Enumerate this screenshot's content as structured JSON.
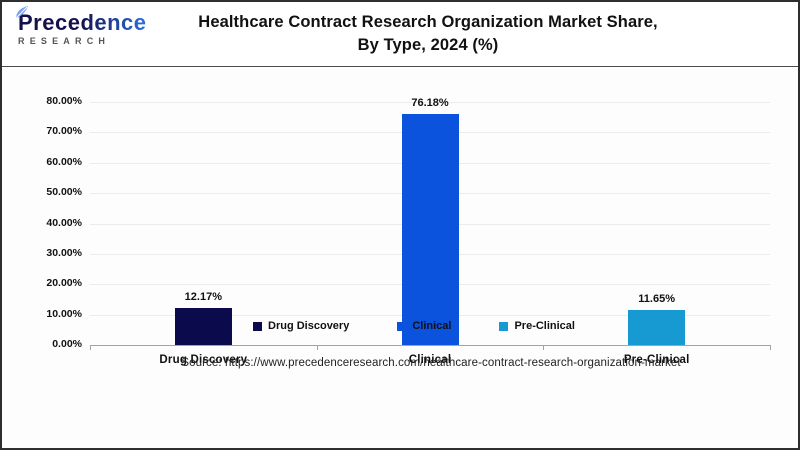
{
  "logo": {
    "brand": "Precedence",
    "sub": "RESEARCH",
    "brand_color_dark": "#14124e",
    "brand_color_blue": "#2e6be0"
  },
  "header": {
    "title_line1": "Healthcare Contract Research Organization Market Share,",
    "title_line2": "By Type, 2024 (%)"
  },
  "chart_data": {
    "type": "bar",
    "title": "Healthcare Contract Research Organization Market Share, By Type, 2024 (%)",
    "categories": [
      "Drug Discovery",
      "Clinical",
      "Pre-Clinical"
    ],
    "values": [
      12.17,
      76.18,
      11.65
    ],
    "value_labels": [
      "12.17%",
      "76.18%",
      "11.65%"
    ],
    "bar_colors": [
      "#0a0a4d",
      "#0b52dd",
      "#1799d1"
    ],
    "xlabel": "",
    "ylabel": "",
    "ylim": [
      0,
      80
    ],
    "ytick_labels": [
      "0.00%",
      "10.00%",
      "20.00%",
      "30.00%",
      "40.00%",
      "50.00%",
      "60.00%",
      "70.00%",
      "80.00%"
    ],
    "grid": true,
    "legend_position": "bottom",
    "legend": [
      {
        "label": "Drug Discovery",
        "color": "#0a0a4d"
      },
      {
        "label": "Clinical",
        "color": "#0b52dd"
      },
      {
        "label": "Pre-Clinical",
        "color": "#1799d1"
      }
    ]
  },
  "footer": {
    "source": "Source: https://www.precedenceresearch.com/healthcare-contract-research-organization-market"
  }
}
